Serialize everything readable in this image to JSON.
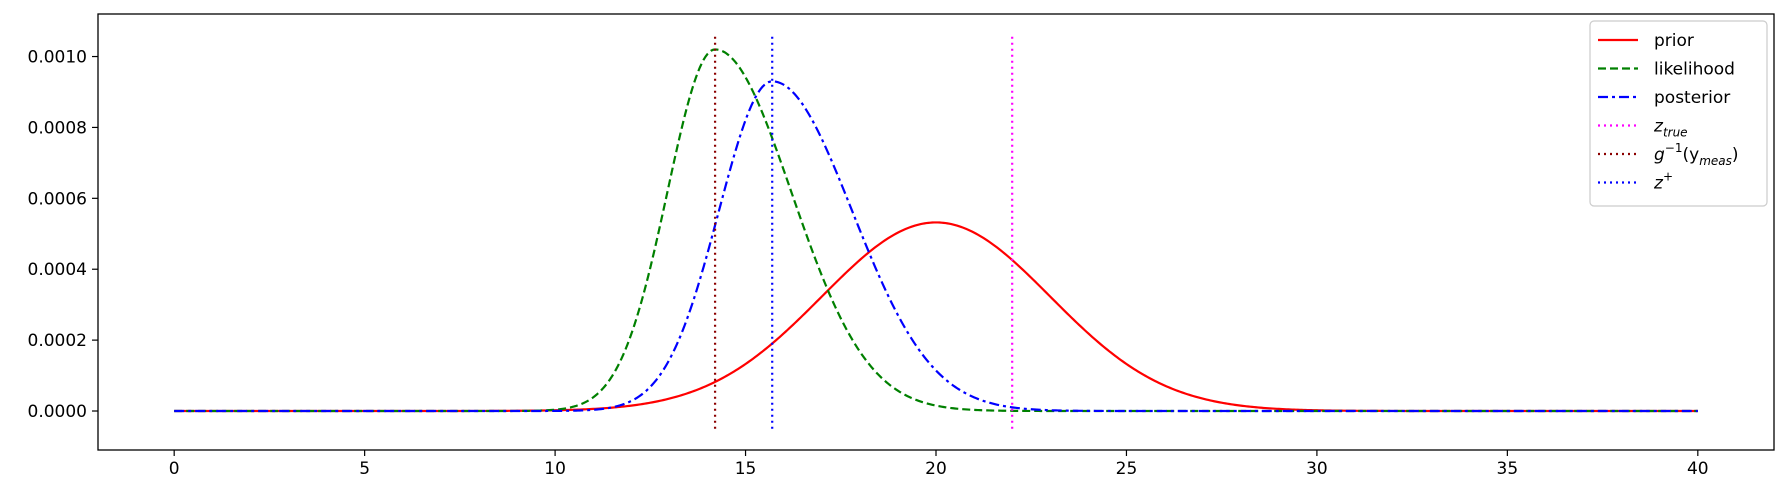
{
  "chart_data": {
    "type": "line",
    "title": "",
    "xlabel": "",
    "ylabel": "",
    "xlim": [
      -2,
      42
    ],
    "ylim": [
      -0.00011,
      0.00112
    ],
    "x_ticks": [
      0,
      5,
      10,
      15,
      20,
      25,
      30,
      35,
      40
    ],
    "x_tick_labels": [
      "0",
      "5",
      "10",
      "15",
      "20",
      "25",
      "30",
      "35",
      "40"
    ],
    "y_ticks": [
      0.0,
      0.0002,
      0.0004,
      0.0006,
      0.0008,
      0.001
    ],
    "y_tick_labels": [
      "0.0000",
      "0.0002",
      "0.0004",
      "0.0006",
      "0.0008",
      "0.0010"
    ],
    "grid": false,
    "legend_position": "top-right",
    "series": [
      {
        "name": "prior",
        "kind": "gaussian",
        "mean": 20.0,
        "sd_left": 3.0,
        "sd_right": 3.0,
        "peak": 0.000532,
        "color": "#ff0000",
        "dash": "solid"
      },
      {
        "name": "likelihood",
        "kind": "gaussian",
        "mean": 14.2,
        "sd_left": 1.25,
        "sd_right": 2.0,
        "peak": 0.00102,
        "color": "#008000",
        "dash": "dashed"
      },
      {
        "name": "posterior",
        "kind": "gaussian",
        "mean": 15.7,
        "sd_left": 1.4,
        "sd_right": 2.1,
        "peak": 0.00093,
        "color": "#0000ff",
        "dash": "dashdot"
      }
    ],
    "vlines": [
      {
        "name": "z_true",
        "label_main": "z",
        "label_sub": "true",
        "label_sup": "",
        "label_tail": "",
        "x": 22.0,
        "y_range": [
          -5e-05,
          0.00106
        ],
        "color": "#ff00ff"
      },
      {
        "name": "g_inv_y_meas",
        "label_main": "g",
        "label_sup": "−1",
        "label_mid": "(y",
        "label_sub": "meas",
        "label_tail": ")",
        "x": 14.2,
        "y_range": [
          -5e-05,
          0.00106
        ],
        "color": "#8b0000"
      },
      {
        "name": "z_plus",
        "label_main": "z",
        "label_sub": "",
        "label_sup": "+",
        "label_tail": "",
        "x": 15.7,
        "y_range": [
          -5e-05,
          0.00106
        ],
        "color": "#0000ff"
      }
    ]
  }
}
